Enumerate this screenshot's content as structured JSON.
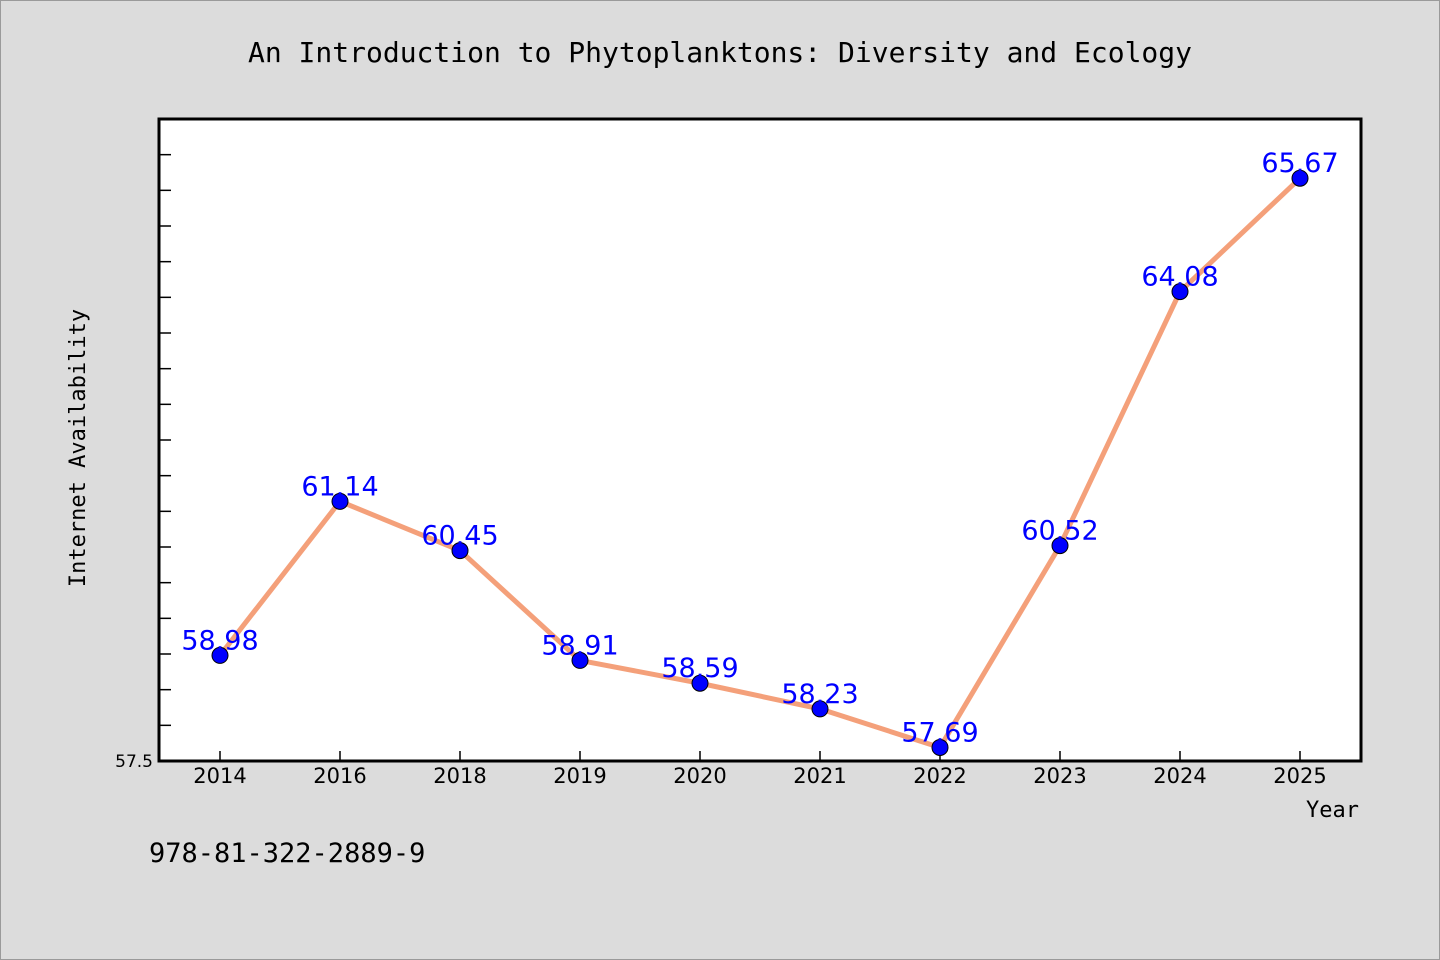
{
  "chart_data": {
    "type": "line",
    "title": "An Introduction to Phytoplanktons: Diversity and Ecology",
    "xlabel": "Year",
    "ylabel": "Internet Availability",
    "categories": [
      "2014",
      "2016",
      "2018",
      "2019",
      "2020",
      "2021",
      "2022",
      "2023",
      "2024",
      "2025"
    ],
    "series": [
      {
        "values": [
          58.98,
          61.14,
          60.45,
          58.91,
          58.59,
          58.23,
          57.69,
          60.52,
          64.08,
          65.67
        ],
        "labels": [
          "58.98",
          "61.14",
          "60.45",
          "58.91",
          "58.59",
          "58.23",
          "57.69",
          "60.52",
          "64.08",
          "65.67"
        ]
      }
    ],
    "ylim": [
      57.5,
      66.5
    ],
    "yticks_labeled": [
      "57.5"
    ],
    "grid": false,
    "colors": {
      "line": "#f4a07a",
      "marker": "#0000ff",
      "label": "#0000ff",
      "background": "#dcdcdc",
      "plot_background": "#ffffff"
    }
  },
  "footer": {
    "isbn": "978-81-322-2889-9"
  }
}
